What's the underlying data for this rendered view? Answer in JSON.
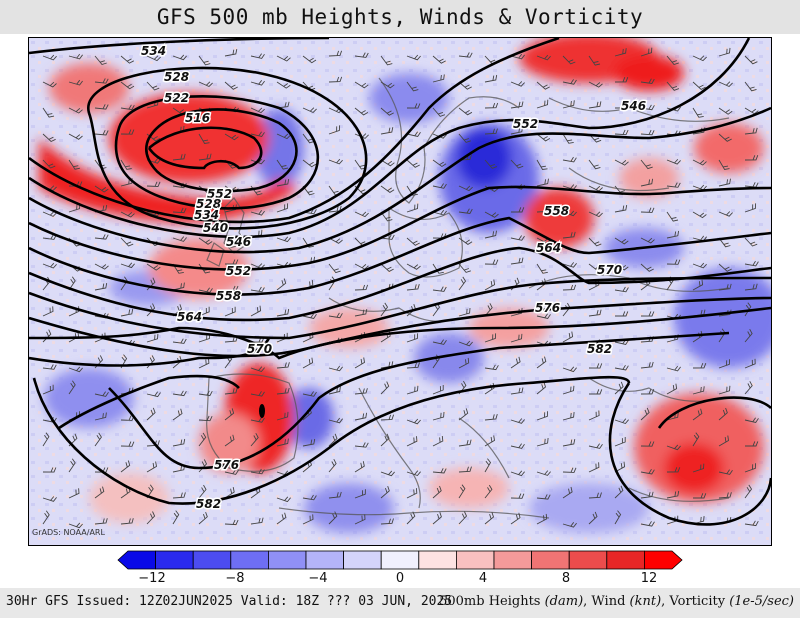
{
  "title": "GFS 500 mb Heights, Winds & Vorticity",
  "credit": "GrADS: NOAA/ARL",
  "footer": {
    "issued": "30Hr GFS Issued: 12Z02JUN2025 Valid: 18Z ??? 03 JUN, 2025",
    "fields_prefix": "500mb Heights ",
    "heights_unit": "(dam)",
    "wind_label": ", Wind ",
    "wind_unit": "(knt)",
    "vort_label": ", Vorticity ",
    "vort_unit": "(1e-5/sec)"
  },
  "colorbar": {
    "ticks": [
      "−12",
      "−8",
      "−4",
      "0",
      "4",
      "8",
      "12"
    ],
    "colors": [
      "#0a0ae8",
      "#2a2aee",
      "#4c4cf0",
      "#6e6ef4",
      "#9090f6",
      "#b4b4f8",
      "#d4d4fa",
      "#f0f0fd",
      "#fde2e2",
      "#f9c0c0",
      "#f49a9a",
      "#f07474",
      "#ec4c4c",
      "#e82626",
      "#ff0000"
    ]
  },
  "contours": [
    {
      "label": "534"
    },
    {
      "label": "528"
    },
    {
      "label": "522"
    },
    {
      "label": "516"
    },
    {
      "label": "552"
    },
    {
      "label": "546"
    },
    {
      "label": "552"
    },
    {
      "label": "528"
    },
    {
      "label": "534"
    },
    {
      "label": "540"
    },
    {
      "label": "546"
    },
    {
      "label": "552"
    },
    {
      "label": "558"
    },
    {
      "label": "564"
    },
    {
      "label": "570"
    },
    {
      "label": "576"
    },
    {
      "label": "582"
    },
    {
      "label": "558"
    },
    {
      "label": "564"
    },
    {
      "label": "570"
    },
    {
      "label": "576"
    },
    {
      "label": "582"
    },
    {
      "label": "576"
    },
    {
      "label": "582"
    }
  ]
}
